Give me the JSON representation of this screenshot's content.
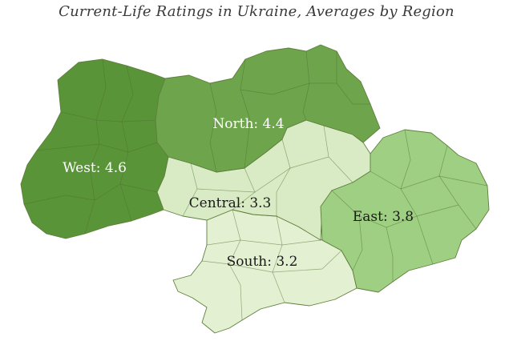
{
  "title": "Current-Life Ratings in Ukraine, Averages by Region",
  "map": {
    "regions": [
      {
        "id": "west",
        "label": "West: 4.6",
        "name": "West",
        "value": 4.6,
        "fill": "#5a9438",
        "text_color": "#ffffff"
      },
      {
        "id": "north",
        "label": "North: 4.4",
        "name": "North",
        "value": 4.4,
        "fill": "#6ea54c",
        "text_color": "#ffffff"
      },
      {
        "id": "east",
        "label": "East: 3.8",
        "name": "East",
        "value": 3.8,
        "fill": "#9fcf82",
        "text_color": "#1a1a1a"
      },
      {
        "id": "central",
        "label": "Central: 3.3",
        "name": "Central",
        "value": 3.3,
        "fill": "#d9ebc4",
        "text_color": "#1a1a1a"
      },
      {
        "id": "south",
        "label": "South: 3.2",
        "name": "South",
        "value": 3.2,
        "fill": "#e4f0d2",
        "text_color": "#1a1a1a"
      }
    ]
  }
}
